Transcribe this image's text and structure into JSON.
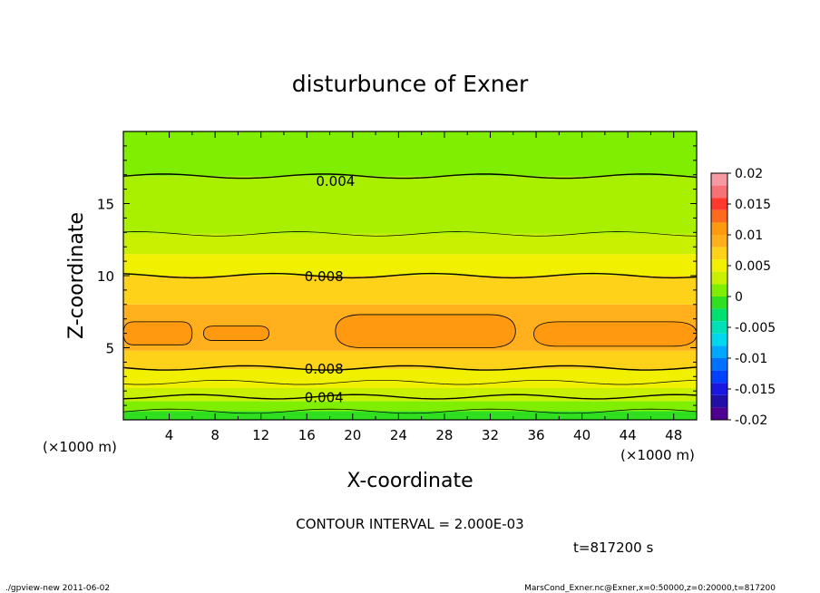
{
  "chart_data": {
    "type": "contour",
    "title": "disturbunce of Exner",
    "xlabel": "X-coordinate",
    "ylabel": "Z-coordinate",
    "x_unit": "(×1000 m)",
    "y_unit": "(×1000 m)",
    "xlim": [
      0,
      50
    ],
    "ylim": [
      0,
      20
    ],
    "x_ticks": [
      4,
      8,
      12,
      16,
      20,
      24,
      28,
      32,
      36,
      40,
      44,
      48
    ],
    "y_ticks": [
      5,
      10,
      15
    ],
    "contour_interval_text": "CONTOUR INTERVAL = 2.000E-03",
    "time_text": "t=817200 s",
    "contour_labels": [
      {
        "text": "0.004",
        "x": 18.5,
        "z": 16.6
      },
      {
        "text": "0.008",
        "x": 17.5,
        "z": 10.0
      },
      {
        "text": "0.008",
        "x": 17.5,
        "z": 3.6
      },
      {
        "text": "0.004",
        "x": 17.5,
        "z": 1.6
      }
    ],
    "colorbar": {
      "ticks": [
        "0.02",
        "0.015",
        "0.01",
        "0.005",
        "0",
        "-0.005",
        "-0.01",
        "-0.015",
        "-0.02"
      ],
      "levels": [
        {
          "lo": 0.018,
          "hi": 0.02,
          "color": "#f59aa2"
        },
        {
          "lo": 0.016,
          "hi": 0.018,
          "color": "#f77276"
        },
        {
          "lo": 0.014,
          "hi": 0.016,
          "color": "#ff3a2c"
        },
        {
          "lo": 0.012,
          "hi": 0.014,
          "color": "#ff6a1c"
        },
        {
          "lo": 0.01,
          "hi": 0.012,
          "color": "#ff9a10"
        },
        {
          "lo": 0.008,
          "hi": 0.01,
          "color": "#ffb01c"
        },
        {
          "lo": 0.006,
          "hi": 0.008,
          "color": "#ffd21a"
        },
        {
          "lo": 0.004,
          "hi": 0.006,
          "color": "#f0f000"
        },
        {
          "lo": 0.002,
          "hi": 0.004,
          "color": "#c8f000"
        },
        {
          "lo": 0.0,
          "hi": 0.002,
          "color": "#80ee00"
        },
        {
          "lo": -0.002,
          "hi": 0.0,
          "color": "#30e020"
        },
        {
          "lo": -0.004,
          "hi": -0.002,
          "color": "#00e070"
        },
        {
          "lo": -0.006,
          "hi": -0.004,
          "color": "#00e0b8"
        },
        {
          "lo": -0.008,
          "hi": -0.006,
          "color": "#00d8ee"
        },
        {
          "lo": -0.01,
          "hi": -0.008,
          "color": "#00a8ff"
        },
        {
          "lo": -0.012,
          "hi": -0.01,
          "color": "#0070ff"
        },
        {
          "lo": -0.014,
          "hi": -0.012,
          "color": "#0040ff"
        },
        {
          "lo": -0.016,
          "hi": -0.014,
          "color": "#1818e0"
        },
        {
          "lo": -0.018,
          "hi": -0.016,
          "color": "#2010a8"
        },
        {
          "lo": -0.02,
          "hi": -0.018,
          "color": "#500090"
        }
      ]
    },
    "bands": [
      {
        "z0": 0.0,
        "z1": 0.6,
        "value": 0.001,
        "color": "#30e020"
      },
      {
        "z0": 0.6,
        "z1": 1.3,
        "value": 0.003,
        "color": "#80ee00"
      },
      {
        "z0": 1.3,
        "z1": 2.2,
        "value": 0.005,
        "color": "#c8f000"
      },
      {
        "z0": 2.2,
        "z1": 3.5,
        "value": 0.007,
        "color": "#f0f000"
      },
      {
        "z0": 3.5,
        "z1": 4.8,
        "value": 0.009,
        "color": "#ffd21a"
      },
      {
        "z0": 4.8,
        "z1": 8.0,
        "value": 0.011,
        "color": "#ffb01c"
      },
      {
        "z0": 8.0,
        "z1": 10.0,
        "value": 0.009,
        "color": "#ffd21a"
      },
      {
        "z0": 10.0,
        "z1": 11.5,
        "value": 0.007,
        "color": "#f0f000"
      },
      {
        "z0": 11.5,
        "z1": 12.9,
        "value": 0.005,
        "color": "#c8f000"
      },
      {
        "z0": 12.9,
        "z1": 16.9,
        "value": 0.003,
        "color": "#a8f000"
      },
      {
        "z0": 16.9,
        "z1": 20.0,
        "value": 0.001,
        "color": "#80ee00"
      }
    ],
    "max_regions": [
      {
        "x0": 0.0,
        "x1": 6.0,
        "z0": 5.2,
        "z1": 6.8,
        "value": 0.0105,
        "color": "#ff9a10"
      },
      {
        "x0": 7.0,
        "x1": 12.7,
        "z0": 5.5,
        "z1": 6.5,
        "value": 0.0105,
        "color": "#ff9a10"
      },
      {
        "x0": 18.5,
        "x1": 34.2,
        "z0": 5.0,
        "z1": 7.3,
        "value": 0.0105,
        "color": "#ff9a10"
      },
      {
        "x0": 35.8,
        "x1": 50.0,
        "z0": 5.1,
        "z1": 6.8,
        "value": 0.0105,
        "color": "#ff9a10"
      }
    ],
    "contour_lines": [
      {
        "level": 0.004,
        "z": 16.9
      },
      {
        "level": 0.006,
        "z": 12.9
      },
      {
        "level": 0.008,
        "z": 10.0
      },
      {
        "level": 0.008,
        "z": 3.6
      },
      {
        "level": 0.006,
        "z": 2.6
      },
      {
        "level": 0.004,
        "z": 1.6
      },
      {
        "level": 0.002,
        "z": 0.6
      }
    ]
  },
  "footer": {
    "left": "./gpview-new   2011-06-02",
    "right": "MarsCond_Exner.nc@Exner,x=0:50000,z=0:20000,t=817200"
  }
}
